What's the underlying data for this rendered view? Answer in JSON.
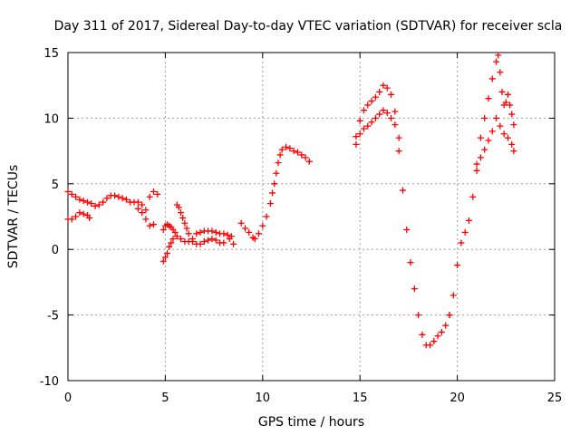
{
  "chart_data": {
    "type": "scatter",
    "title": "Day 311 of 2017, Sidereal Day-to-day VTEC variation (SDTVAR) for receiver scla",
    "xlabel": "GPS time / hours",
    "ylabel": "SDTVAR / TECUs",
    "xlim": [
      0,
      25
    ],
    "ylim": [
      -10,
      15
    ],
    "xticks": [
      0,
      5,
      10,
      15,
      20,
      25
    ],
    "yticks": [
      -10,
      -5,
      0,
      5,
      10,
      15
    ],
    "xtick_labels": [
      "0",
      "5",
      "10",
      "15",
      "20",
      "25"
    ],
    "ytick_labels": [
      "-10",
      "-5",
      "0",
      "5",
      "10",
      "15"
    ],
    "grid": true,
    "legend": "none",
    "marker": "+",
    "color": "#ff0000",
    "series": [
      {
        "x": [
          0.0,
          0.2,
          0.4,
          0.6,
          0.8,
          1.0,
          1.2,
          1.4,
          1.6,
          1.8,
          2.0,
          2.2,
          2.4,
          2.6,
          2.8,
          3.0,
          3.2,
          3.4,
          3.6,
          3.8,
          4.0,
          4.2,
          4.4,
          4.6
        ],
        "y": [
          4.4,
          4.2,
          4.0,
          3.8,
          3.7,
          3.6,
          3.5,
          3.3,
          3.4,
          3.6,
          3.9,
          4.1,
          4.1,
          4.0,
          3.9,
          3.8,
          3.6,
          3.6,
          3.6,
          3.4,
          3.0,
          4.0,
          4.4,
          4.2
        ]
      },
      {
        "x": [
          0.0,
          0.2,
          0.4,
          0.6,
          0.8,
          1.0,
          1.1,
          3.6,
          3.8,
          4.0,
          4.2,
          4.4
        ],
        "y": [
          2.3,
          2.3,
          2.5,
          2.8,
          2.7,
          2.6,
          2.4,
          3.1,
          2.8,
          2.3,
          1.8,
          1.9
        ]
      },
      {
        "x": [
          4.9,
          5.0,
          5.1,
          5.2,
          5.3,
          5.4,
          5.5,
          5.6,
          5.8,
          6.0,
          6.2,
          6.4,
          6.6,
          6.8,
          7.0,
          7.2,
          7.4,
          7.6,
          7.8,
          8.0,
          8.2,
          8.4
        ],
        "y": [
          1.5,
          1.8,
          1.9,
          1.8,
          1.7,
          1.5,
          1.3,
          1.0,
          0.8,
          0.6,
          0.6,
          0.8,
          1.2,
          1.3,
          1.4,
          1.4,
          1.4,
          1.3,
          1.2,
          1.2,
          1.1,
          1.0
        ]
      },
      {
        "x": [
          4.9,
          5.0,
          5.1,
          5.2,
          5.3,
          5.4
        ],
        "y": [
          -0.9,
          -0.6,
          -0.3,
          0.2,
          0.5,
          0.8
        ]
      },
      {
        "x": [
          5.6,
          5.7,
          5.8,
          5.9,
          6.0,
          6.1,
          6.2,
          6.4,
          6.6,
          6.8,
          7.0,
          7.2,
          7.4,
          7.6,
          7.8,
          8.0
        ],
        "y": [
          3.4,
          3.2,
          2.8,
          2.4,
          2.0,
          1.6,
          1.2,
          0.6,
          0.4,
          0.4,
          0.6,
          0.7,
          0.8,
          0.7,
          0.5,
          0.5
        ]
      },
      {
        "x": [
          8.3,
          8.5,
          8.9,
          9.1,
          9.3,
          9.5,
          9.6,
          9.8,
          10.0,
          10.2,
          10.4,
          10.5,
          10.6,
          10.7,
          10.8,
          10.9,
          11.0,
          11.2,
          11.4,
          11.6,
          11.8,
          12.0,
          12.2,
          12.4
        ],
        "y": [
          0.8,
          0.4,
          2.0,
          1.6,
          1.3,
          0.9,
          0.8,
          1.2,
          1.8,
          2.5,
          3.5,
          4.3,
          5.0,
          5.8,
          6.6,
          7.2,
          7.6,
          7.8,
          7.7,
          7.5,
          7.4,
          7.2,
          7.0,
          6.7
        ]
      },
      {
        "x": [
          14.8,
          15.0,
          15.2,
          15.4,
          15.6,
          15.8,
          16.0,
          16.2,
          16.4,
          16.6,
          16.8,
          17.0,
          17.2,
          17.4,
          17.6,
          17.8,
          18.0,
          18.2,
          18.4,
          18.6,
          18.8,
          19.0,
          19.2,
          19.4,
          19.6
        ],
        "y": [
          8.6,
          9.8,
          10.6,
          11.0,
          11.3,
          11.6,
          12.0,
          12.5,
          12.3,
          11.8,
          10.5,
          7.5,
          4.5,
          1.5,
          -1.0,
          -3.0,
          -5.0,
          -6.5,
          -7.3,
          -7.3,
          -7.0,
          -6.6,
          -6.3,
          -5.8,
          -5.0
        ]
      },
      {
        "x": [
          14.8,
          15.0,
          15.2,
          15.4,
          15.6,
          15.8,
          16.0,
          16.2,
          16.4,
          16.6,
          16.8,
          17.0
        ],
        "y": [
          8.0,
          8.8,
          9.2,
          9.4,
          9.7,
          10.0,
          10.3,
          10.6,
          10.4,
          10.0,
          9.5,
          8.5
        ]
      },
      {
        "x": [
          19.6,
          19.8,
          20.0,
          20.2,
          20.4,
          20.6,
          20.8,
          21.0,
          21.2,
          21.4,
          21.6,
          21.8,
          22.0,
          22.2,
          22.4,
          22.6,
          22.8,
          22.9
        ],
        "y": [
          -5.0,
          -3.5,
          -1.2,
          0.5,
          1.3,
          2.2,
          4.0,
          6.0,
          7.0,
          7.6,
          8.3,
          9.0,
          10.0,
          9.4,
          8.8,
          8.5,
          8.0,
          7.5
        ]
      },
      {
        "x": [
          21.0,
          21.2,
          21.4,
          21.6,
          21.8,
          22.0,
          22.1,
          22.2,
          22.3,
          22.4,
          22.5,
          22.6,
          22.7,
          22.8,
          22.9
        ],
        "y": [
          6.5,
          8.5,
          10.0,
          11.5,
          13.0,
          14.3,
          14.8,
          13.5,
          12.0,
          11.0,
          11.2,
          11.8,
          11.0,
          10.3,
          9.5
        ]
      }
    ]
  }
}
